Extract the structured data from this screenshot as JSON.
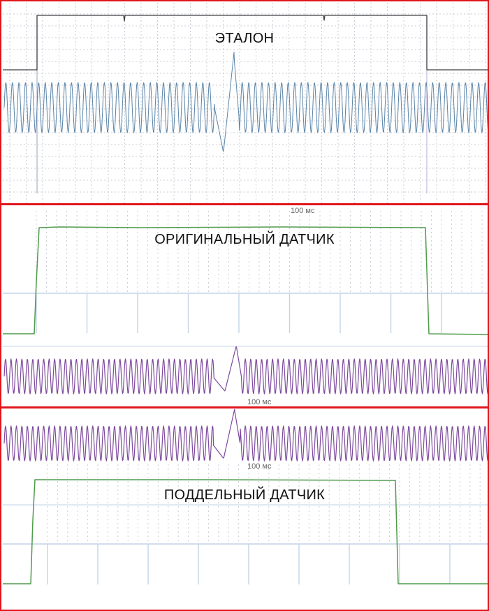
{
  "panels": [
    {
      "title": "ЭТАЛОН"
    },
    {
      "title": "ОРИГИНАЛЬНЫЙ ДАТЧИК",
      "time_label": "100 мс",
      "time_label_2": "100 мс"
    },
    {
      "title": "ПОДДЕЛЬНЫЙ ДАТЧИК",
      "time_label": "100 мс"
    }
  ],
  "colors": {
    "frame": "#e0161c",
    "reference_square": "#3a3d42",
    "reference_sine": "#5b84a8",
    "sensor_square": "#4f9a4b",
    "crank_sine": "#7e4a9e",
    "grid_dotted": "#c9ced6",
    "grid_solid": "#c2d4e8"
  }
}
